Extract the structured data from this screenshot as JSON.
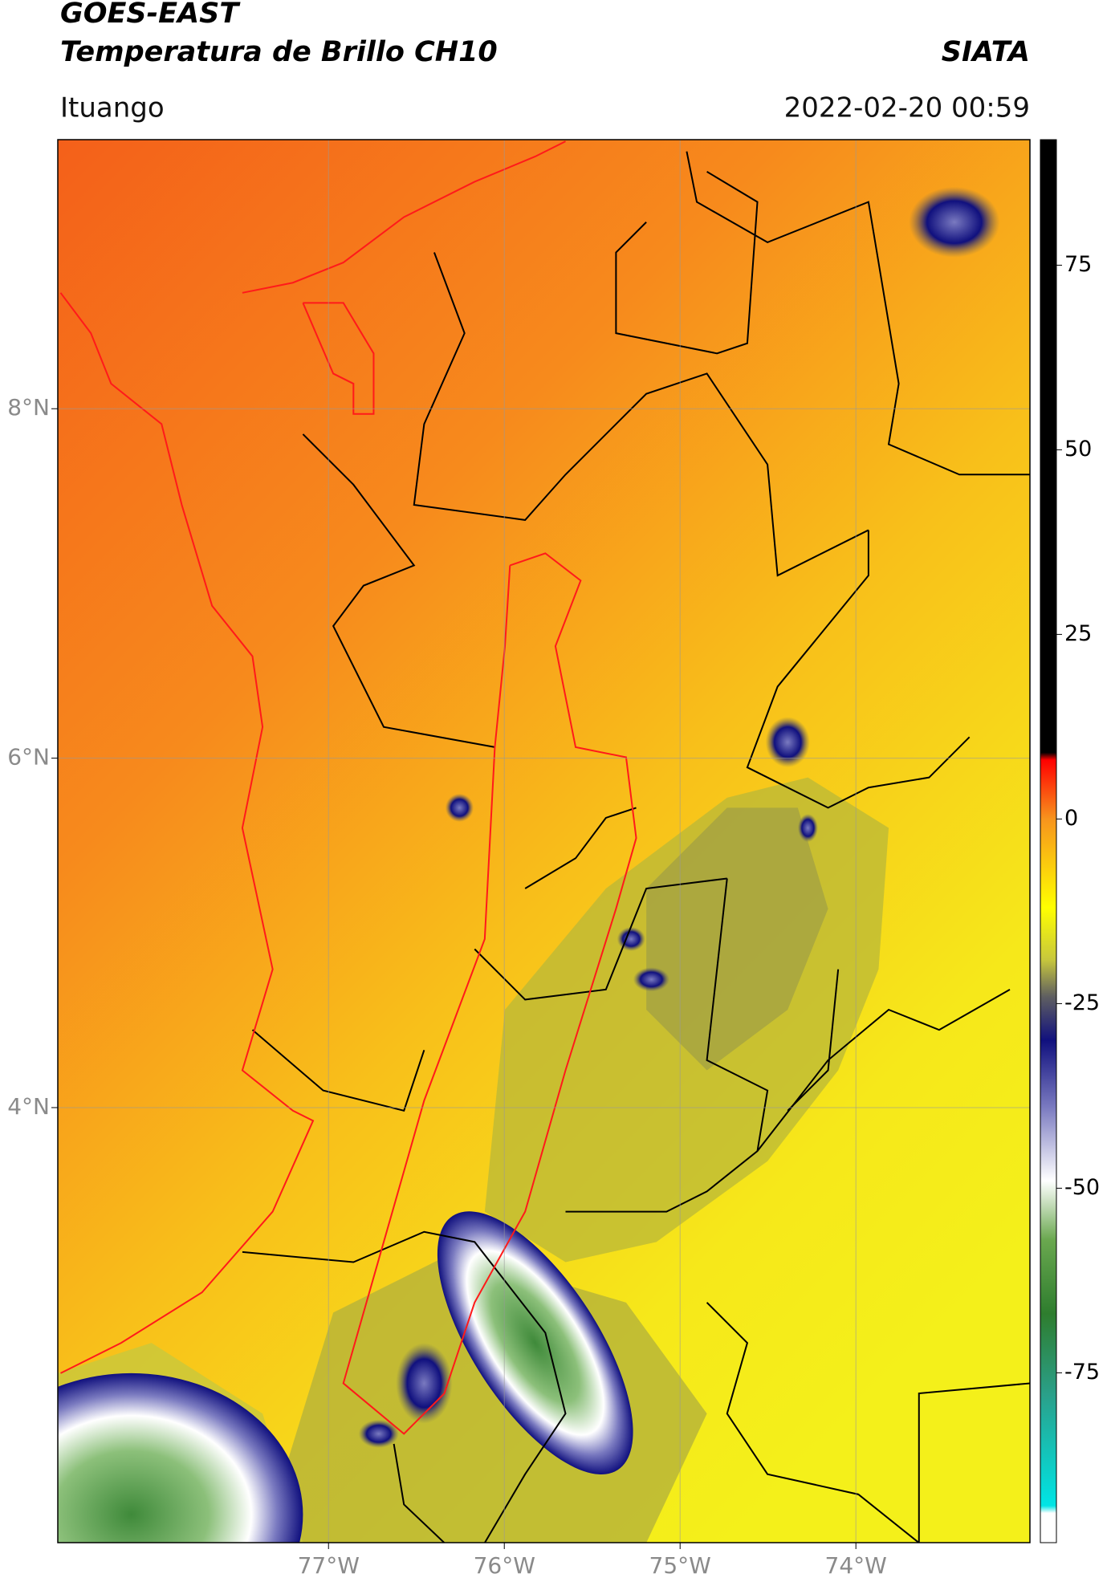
{
  "header": {
    "title": "GOES-EAST",
    "subtitle": "Temperatura de Brillo CH10",
    "brand": "SIATA",
    "location": "Ituango",
    "timestamp": "2022-02-20 00:59"
  },
  "map": {
    "type": "map",
    "xlim": [
      -78.54,
      -73.01
    ],
    "ylim": [
      1.51,
      9.54
    ],
    "xticks": [
      {
        "value": -77,
        "label": "77°W"
      },
      {
        "value": -76,
        "label": "76°W"
      },
      {
        "value": -75,
        "label": "75°W"
      },
      {
        "value": -74,
        "label": "74°W"
      }
    ],
    "yticks": [
      {
        "value": 8,
        "label": "8°N"
      },
      {
        "value": 6,
        "label": "6°N"
      },
      {
        "value": 4,
        "label": "4°N"
      }
    ],
    "grid": true
  },
  "colorbar": {
    "lim": [
      -98,
      92
    ],
    "ticks": [
      75,
      50,
      25,
      0,
      -25,
      -50,
      -75
    ],
    "colormap": [
      {
        "value": 92,
        "color": "#000000"
      },
      {
        "value": 9,
        "color": "#000000"
      },
      {
        "value": 8,
        "color": "#ff0000"
      },
      {
        "value": 0,
        "color": "#f7941d"
      },
      {
        "value": -12,
        "color": "#ffff00"
      },
      {
        "value": -19,
        "color": "#c8c83c"
      },
      {
        "value": -24,
        "color": "#606060"
      },
      {
        "value": -30,
        "color": "#10107e"
      },
      {
        "value": -39,
        "color": "#7a7ac0"
      },
      {
        "value": -49,
        "color": "#ffffff"
      },
      {
        "value": -57,
        "color": "#6aa84f"
      },
      {
        "value": -67,
        "color": "#2e7d2e"
      },
      {
        "value": -78,
        "color": "#2aa08a"
      },
      {
        "value": -93,
        "color": "#00e5e5"
      },
      {
        "value": -94,
        "color": "#ffffff"
      },
      {
        "value": -98,
        "color": "#ffffff"
      }
    ]
  }
}
